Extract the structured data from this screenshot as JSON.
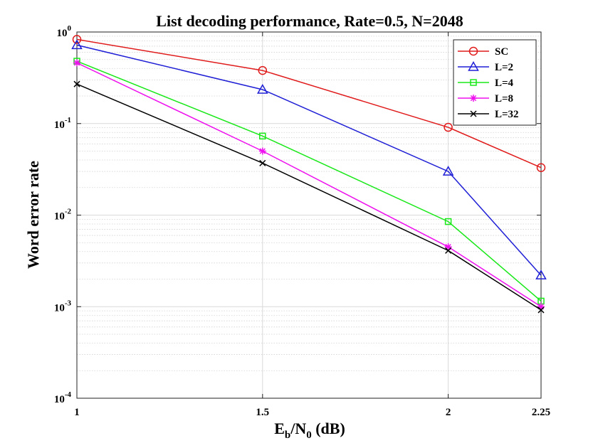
{
  "chart_data": {
    "type": "line",
    "title": "List decoding performance, Rate=0.5, N=2048",
    "xlabel": {
      "base": "E",
      "sub1": "b",
      "mid": "/N",
      "sub2": "0",
      "tail": " (dB)"
    },
    "ylabel": "Word error rate",
    "x": [
      1,
      1.5,
      2,
      2.25
    ],
    "xlim": [
      1,
      2.25
    ],
    "ylim": [
      0.0001,
      1
    ],
    "yscale": "log",
    "xtick_labels": [
      "1",
      "1.5",
      "2",
      "2.25"
    ],
    "ytick_labels": [
      {
        "base": "10",
        "exp": "0"
      },
      {
        "base": "10",
        "exp": "-1"
      },
      {
        "base": "10",
        "exp": "-2"
      },
      {
        "base": "10",
        "exp": "-3"
      },
      {
        "base": "10",
        "exp": "-4"
      }
    ],
    "grid": true,
    "legend_position": "top-right",
    "series": [
      {
        "name": "SC",
        "color": "#e01b1b",
        "marker": "circle",
        "values": [
          0.83,
          0.38,
          0.091,
          0.033
        ]
      },
      {
        "name": "L=2",
        "color": "#1f1fd6",
        "marker": "triangle",
        "values": [
          0.72,
          0.235,
          0.03,
          0.0022
        ]
      },
      {
        "name": "L=4",
        "color": "#18e818",
        "marker": "square",
        "values": [
          0.48,
          0.073,
          0.0085,
          0.00115
        ]
      },
      {
        "name": "L=8",
        "color": "#ee10ee",
        "marker": "star",
        "values": [
          0.46,
          0.05,
          0.0045,
          0.001
        ]
      },
      {
        "name": "L=32",
        "color": "#000000",
        "marker": "x",
        "values": [
          0.27,
          0.037,
          0.0041,
          0.00092
        ]
      }
    ]
  }
}
